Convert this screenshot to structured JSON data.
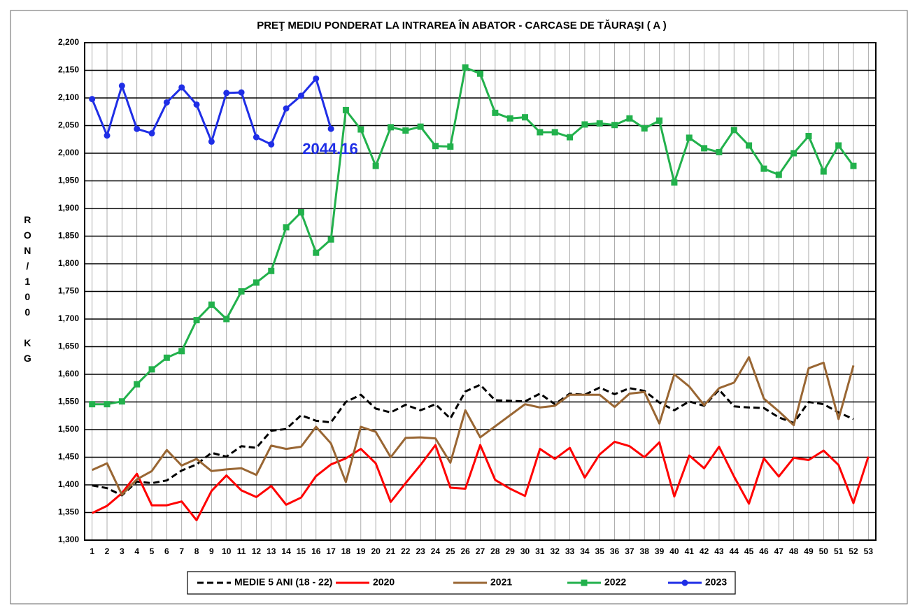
{
  "chart_data": {
    "type": "line",
    "title": "PREŢ MEDIU PONDERAT LA INTRAREA ÎN ABATOR - CARCASE DE TĂURAŞI ( A )",
    "y_label": "RON/100 KG",
    "annotation": "2044.16",
    "categories": [
      "1",
      "2",
      "3",
      "4",
      "5",
      "6",
      "7",
      "8",
      "9",
      "10",
      "11",
      "12",
      "13",
      "14",
      "15",
      "16",
      "17",
      "18",
      "19",
      "20",
      "21",
      "22",
      "23",
      "24",
      "25",
      "26",
      "27",
      "28",
      "29",
      "30",
      "31",
      "32",
      "33",
      "34",
      "35",
      "36",
      "37",
      "38",
      "39",
      "40",
      "41",
      "42",
      "43",
      "44",
      "45",
      "46",
      "47",
      "48",
      "49",
      "50",
      "51",
      "52",
      "53"
    ],
    "ylim": [
      1300,
      2200
    ],
    "yticks": [
      {
        "value": 1300,
        "label": "1,300"
      },
      {
        "value": 1350,
        "label": "1,350"
      },
      {
        "value": 1400,
        "label": "1,400"
      },
      {
        "value": 1450,
        "label": "1,450"
      },
      {
        "value": 1500,
        "label": "1,500"
      },
      {
        "value": 1550,
        "label": "1,550"
      },
      {
        "value": 1600,
        "label": "1,600"
      },
      {
        "value": 1650,
        "label": "1,650"
      },
      {
        "value": 1700,
        "label": "1,700"
      },
      {
        "value": 1750,
        "label": "1,750"
      },
      {
        "value": 1800,
        "label": "1,800"
      },
      {
        "value": 1850,
        "label": "1,850"
      },
      {
        "value": 1900,
        "label": "1,900"
      },
      {
        "value": 1950,
        "label": "1,950"
      },
      {
        "value": 2000,
        "label": "2,000"
      },
      {
        "value": 2050,
        "label": "2,050"
      },
      {
        "value": 2100,
        "label": "2,100"
      },
      {
        "value": 2150,
        "label": "2,150"
      },
      {
        "value": 2200,
        "label": "2,200"
      }
    ],
    "grid": true,
    "legend": "bottom",
    "series": [
      {
        "name": "MEDIE 5 ANI (18 - 22)",
        "color": "#000000",
        "dashed": true,
        "values": [
          1399,
          1394,
          1381,
          1406,
          1403,
          1408,
          1426,
          1437,
          1458,
          1451,
          1470,
          1467,
          1498,
          1501,
          1526,
          1516,
          1513,
          1550,
          1563,
          1538,
          1531,
          1545,
          1535,
          1546,
          1520,
          1569,
          1581,
          1553,
          1552,
          1551,
          1565,
          1546,
          1565,
          1563,
          1576,
          1564,
          1575,
          1570,
          1549,
          1535,
          1551,
          1543,
          1572,
          1542,
          1540,
          1539,
          1522,
          1512,
          1550,
          1546,
          1531,
          1519,
          null
        ]
      },
      {
        "name": "2020",
        "color": "#ff0000",
        "values": [
          1349,
          1362,
          1385,
          1420,
          1363,
          1363,
          1370,
          1336,
          1389,
          1417,
          1390,
          1378,
          1398,
          1364,
          1377,
          1416,
          1437,
          1448,
          1465,
          1439,
          1369,
          1403,
          1436,
          1472,
          1395,
          1393,
          1472,
          1409,
          1393,
          1380,
          1465,
          1447,
          1467,
          1413,
          1455,
          1478,
          1470,
          1450,
          1477,
          1379,
          1453,
          1430,
          1469,
          1415,
          1366,
          1448,
          1415,
          1449,
          1445,
          1462,
          1436,
          1367,
          1451
        ]
      },
      {
        "name": "2021",
        "color": "#996633",
        "values": [
          1427,
          1439,
          1382,
          1410,
          1425,
          1463,
          1435,
          1447,
          1425,
          1428,
          1430,
          1418,
          1471,
          1465,
          1469,
          1505,
          1475,
          1405,
          1505,
          1496,
          1450,
          1485,
          1486,
          1484,
          1440,
          1535,
          1486,
          1506,
          1526,
          1546,
          1540,
          1543,
          1563,
          1563,
          1563,
          1541,
          1565,
          1568,
          1511,
          1600,
          1578,
          1544,
          1575,
          1585,
          1631,
          1556,
          1533,
          1508,
          1611,
          1621,
          1519,
          1616,
          null
        ]
      },
      {
        "name": "2022",
        "color": "#22b14c",
        "marker": "square",
        "values": [
          1546,
          1546,
          1551,
          1582,
          1609,
          1630,
          1642,
          1698,
          1726,
          1700,
          1750,
          1766,
          1787,
          1866,
          1893,
          1820,
          1844,
          2078,
          2043,
          1977,
          2047,
          2041,
          2048,
          2013,
          2012,
          2155,
          2144,
          2073,
          2063,
          2065,
          2038,
          2038,
          2029,
          2052,
          2054,
          2051,
          2063,
          2045,
          2059,
          1947,
          2028,
          2009,
          2002,
          2042,
          2014,
          1972,
          1961,
          2000,
          2031,
          1967,
          2014,
          1977,
          null
        ]
      },
      {
        "name": "2023",
        "color": "#1f2ee6",
        "marker": "circle",
        "values": [
          2098,
          2032,
          2122,
          2044,
          2036,
          2092,
          2119,
          2088,
          2021,
          2109,
          2110,
          2029,
          2016,
          2081,
          2104,
          2135,
          2044.16,
          null,
          null,
          null,
          null,
          null,
          null,
          null,
          null,
          null,
          null,
          null,
          null,
          null,
          null,
          null,
          null,
          null,
          null,
          null,
          null,
          null,
          null,
          null,
          null,
          null,
          null,
          null,
          null,
          null,
          null,
          null,
          null,
          null,
          null,
          null,
          null
        ]
      }
    ]
  }
}
